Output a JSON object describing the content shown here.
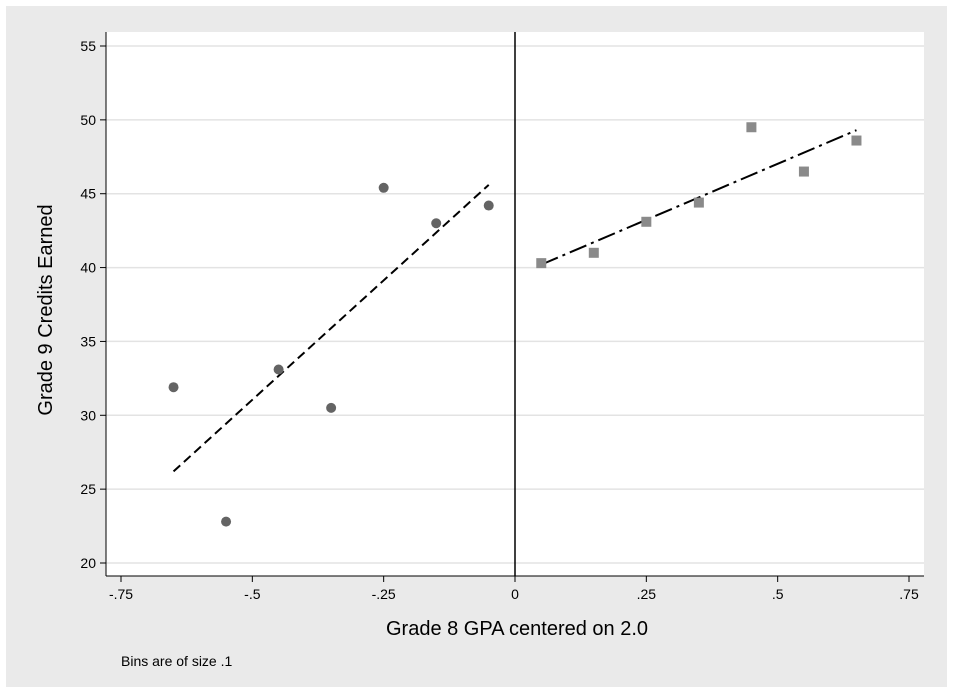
{
  "chart_data": {
    "type": "scatter",
    "xlabel": "Grade 8 GPA centered on 2.0",
    "ylabel": "Grade 9 Credits Earned",
    "note": "Bins are of size .1",
    "xlim": [
      -0.75,
      0.75
    ],
    "ylim": [
      20,
      56
    ],
    "grid": true,
    "x_ticks": [
      -0.75,
      -0.5,
      -0.25,
      0,
      0.25,
      0.5,
      0.75
    ],
    "x_tick_labels": [
      "-.75",
      "-.5",
      "-.25",
      "0",
      ".25",
      ".5",
      ".75"
    ],
    "y_ticks": [
      20,
      25,
      30,
      35,
      40,
      45,
      50,
      55
    ],
    "y_tick_labels": [
      "20",
      "25",
      "30",
      "35",
      "40",
      "45",
      "50",
      "55"
    ],
    "cutoff_x": 0,
    "series": [
      {
        "marker": "circle",
        "color": "#646464",
        "x": [
          -0.65,
          -0.55,
          -0.45,
          -0.35,
          -0.25,
          -0.15,
          -0.05
        ],
        "y": [
          31.9,
          22.8,
          33.1,
          30.5,
          45.4,
          43.0,
          44.2
        ]
      },
      {
        "marker": "square",
        "color": "#8a8a8a",
        "x": [
          0.05,
          0.15,
          0.25,
          0.35,
          0.45,
          0.55,
          0.65
        ],
        "y": [
          40.3,
          41.0,
          43.1,
          44.4,
          49.5,
          46.5,
          48.6
        ]
      }
    ],
    "fit_lines": [
      {
        "style": "dashed",
        "x": [
          -0.65,
          -0.05
        ],
        "y": [
          26.2,
          45.6
        ]
      },
      {
        "style": "dash-dot",
        "x": [
          0.05,
          0.65
        ],
        "y": [
          40.2,
          49.3
        ]
      }
    ]
  }
}
